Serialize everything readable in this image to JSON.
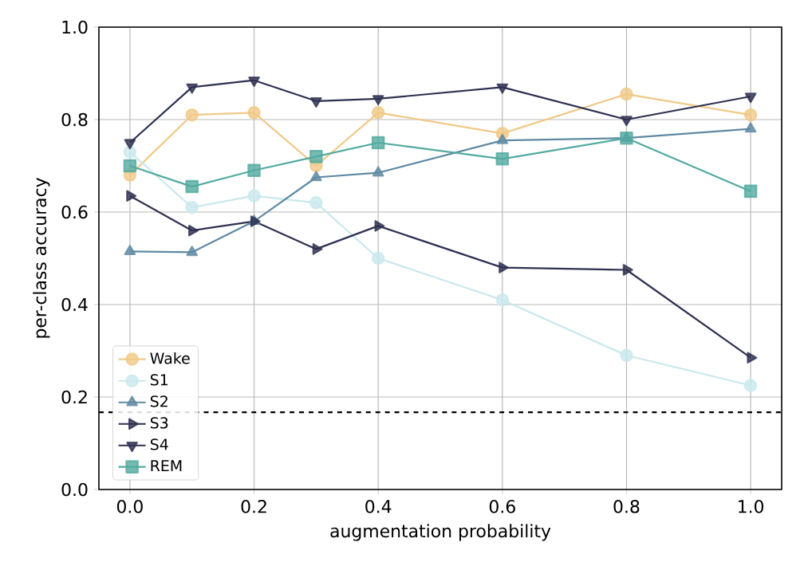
{
  "chart_data": {
    "type": "line",
    "xlabel": "augmentation probability",
    "ylabel": "per-class accuracy",
    "x": [
      0.0,
      0.1,
      0.2,
      0.3,
      0.4,
      0.6,
      0.8,
      1.0
    ],
    "series": [
      {
        "name": "Wake",
        "color": "#f0c987",
        "marker": "circle",
        "values": [
          0.68,
          0.81,
          0.815,
          0.7,
          0.815,
          0.77,
          0.855,
          0.81
        ]
      },
      {
        "name": "S1",
        "color": "#c9e8ed",
        "marker": "circle",
        "values": [
          0.73,
          0.61,
          0.635,
          0.62,
          0.5,
          0.41,
          0.29,
          0.225
        ]
      },
      {
        "name": "S2",
        "color": "#5f8aa3",
        "marker": "triangle",
        "values": [
          0.515,
          0.513,
          0.58,
          0.675,
          0.685,
          0.755,
          0.76,
          0.78
        ]
      },
      {
        "name": "S3",
        "color": "#2e3150",
        "marker": "triangle right",
        "values": [
          0.635,
          0.56,
          0.58,
          0.52,
          0.57,
          0.48,
          0.475,
          0.285
        ]
      },
      {
        "name": "S4",
        "color": "#2e3150",
        "marker": "triangle down",
        "values": [
          0.75,
          0.87,
          0.885,
          0.84,
          0.845,
          0.87,
          0.8,
          0.85
        ]
      },
      {
        "name": "REM",
        "color": "#52aaa0",
        "marker": "square",
        "values": [
          0.7,
          0.655,
          0.69,
          0.72,
          0.75,
          0.715,
          0.76,
          0.645
        ]
      }
    ],
    "ref_lines": [
      {
        "axis": "y",
        "value": 0.167,
        "color": "#000000",
        "line_style": "dashed"
      }
    ],
    "xlim": [
      -0.05,
      1.05
    ],
    "ylim": [
      0.0,
      1.0
    ],
    "xticks": [
      {
        "value": 0.0,
        "label": "0.0"
      },
      {
        "value": 0.2,
        "label": "0.2"
      },
      {
        "value": 0.4,
        "label": "0.4"
      },
      {
        "value": 0.6,
        "label": "0.6"
      },
      {
        "value": 0.8,
        "label": "0.8"
      },
      {
        "value": 1.0,
        "label": "1.0"
      }
    ],
    "yticks": [
      {
        "value": 0.0,
        "label": "0.0"
      },
      {
        "value": 0.2,
        "label": "0.2"
      },
      {
        "value": 0.4,
        "label": "0.4"
      },
      {
        "value": 0.6,
        "label": "0.6"
      },
      {
        "value": 0.8,
        "label": "0.8"
      },
      {
        "value": 1.0,
        "label": "1.0"
      }
    ],
    "grid": true,
    "legend": "bottom left",
    "line_style": "solid"
  }
}
